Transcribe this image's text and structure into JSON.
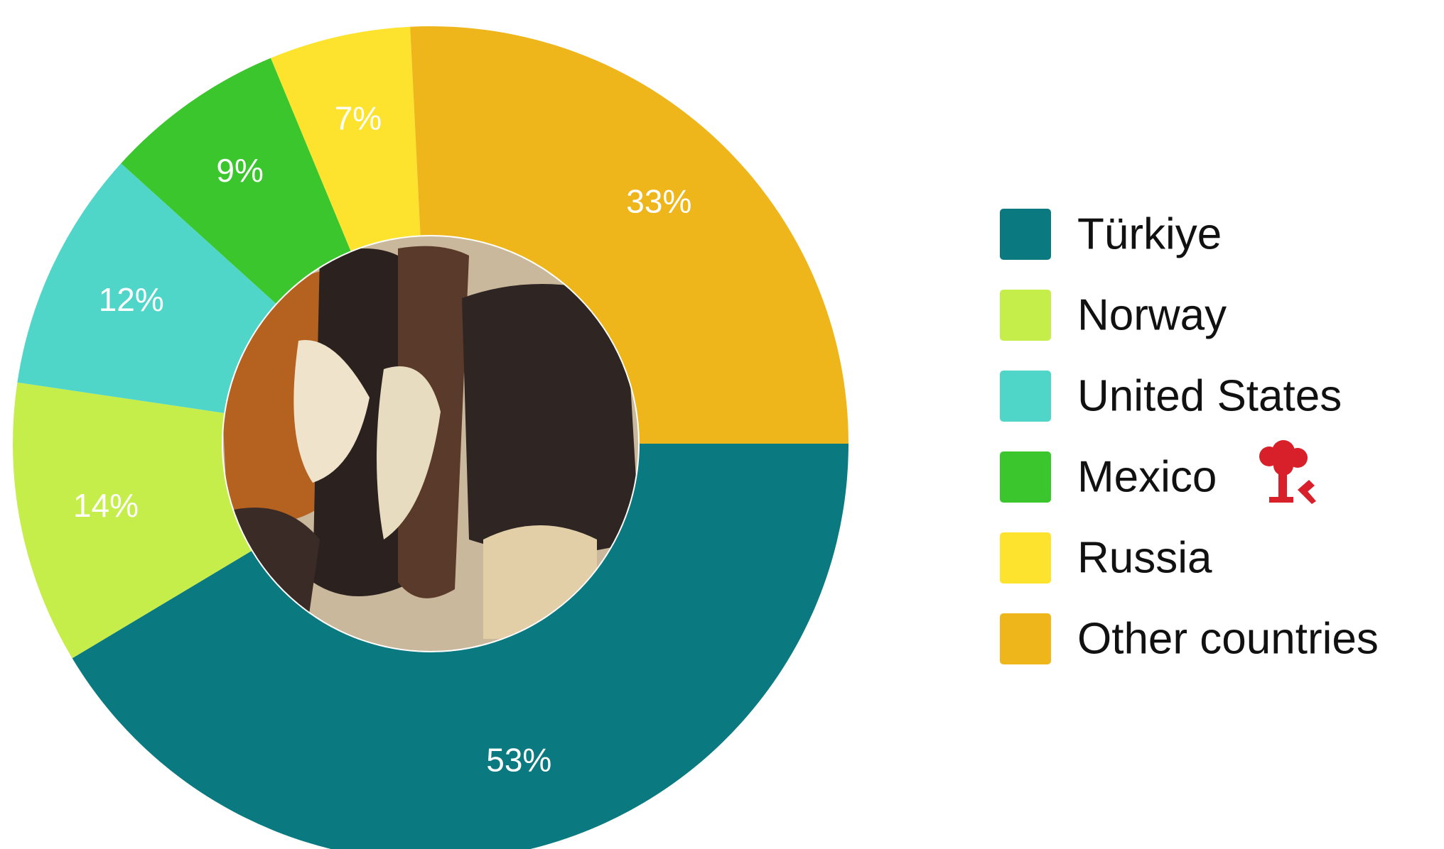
{
  "chart_data": {
    "type": "pie",
    "categories": [
      "Türkiye",
      "Norway",
      "United States",
      "Mexico",
      "Russia",
      "Other countries"
    ],
    "values": [
      53,
      14,
      12,
      9,
      7,
      33
    ],
    "value_labels": [
      "53%",
      "14%",
      "12%",
      "9%",
      "7%",
      "33%"
    ],
    "colors": [
      "#0b7a80",
      "#c5ee4a",
      "#50d6c8",
      "#3ac62c",
      "#fde22e",
      "#efb61c"
    ]
  }
}
